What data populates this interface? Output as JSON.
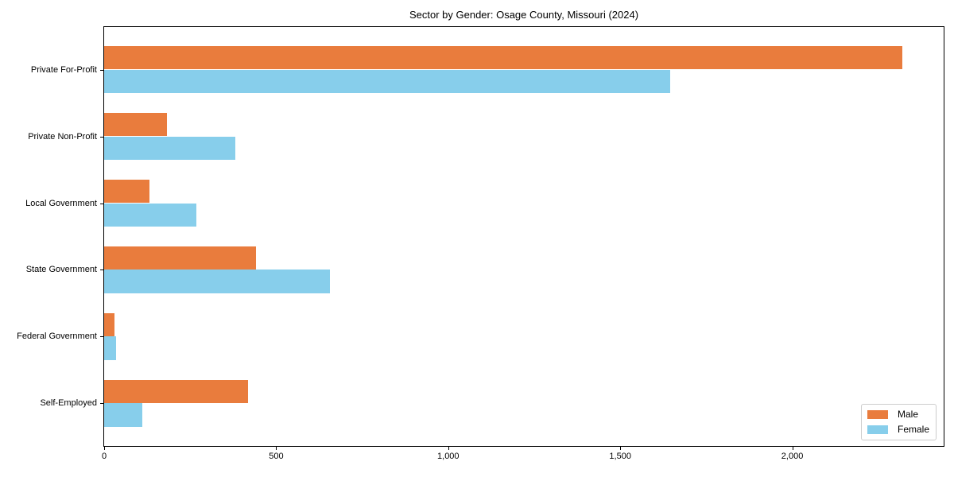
{
  "title": "Sector by Gender: Osage County, Missouri (2024)",
  "chart_data": {
    "type": "bar",
    "orientation": "horizontal",
    "title": "Sector by Gender: Osage County, Missouri (2024)",
    "categories": [
      "Private For-Profit",
      "Private Non-Profit",
      "Local Government",
      "State Government",
      "Federal Government",
      "Self-Employed"
    ],
    "series": [
      {
        "name": "Male",
        "color": "#e97c3d",
        "values": [
          2320,
          183,
          131,
          441,
          29,
          418
        ]
      },
      {
        "name": "Female",
        "color": "#87ceeb",
        "values": [
          1645,
          381,
          268,
          657,
          35,
          112
        ]
      }
    ],
    "xlabel": "",
    "ylabel": "",
    "xlim": [
      0,
      2440
    ],
    "xticks": [
      0,
      500,
      1000,
      1500,
      2000
    ],
    "xtick_labels": [
      "0",
      "500",
      "1,000",
      "1,500",
      "2,000"
    ],
    "grid": false,
    "legend": {
      "position": "lower right",
      "entries": [
        "Male",
        "Female"
      ]
    }
  }
}
